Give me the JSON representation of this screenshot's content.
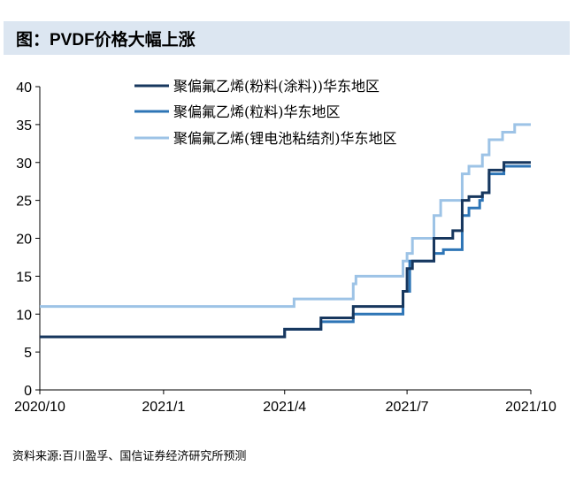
{
  "title": "图：PVDF价格大幅上涨",
  "source": "资料来源:百川盈孚、国信证券经济研究所预测",
  "chart_data": {
    "type": "line",
    "step": true,
    "title": "",
    "xlabel": "",
    "ylabel": "",
    "ylim": [
      0,
      40
    ],
    "yticks": [
      0,
      5,
      10,
      15,
      20,
      25,
      30,
      35,
      40
    ],
    "xlim": [
      "2020-10-01",
      "2021-10-01"
    ],
    "xticks": [
      {
        "date": "2020-10-01",
        "label": "2020/10"
      },
      {
        "date": "2021-01-01",
        "label": "2021/1"
      },
      {
        "date": "2021-04-01",
        "label": "2021/4"
      },
      {
        "date": "2021-07-01",
        "label": "2021/7"
      },
      {
        "date": "2021-10-01",
        "label": "2021/10"
      }
    ],
    "grid": false,
    "legend": "top",
    "series": [
      {
        "name": "聚偏氟乙烯(粉料(涂料))华东地区",
        "color": "#17375e",
        "points": [
          [
            "2020-10-01",
            7
          ],
          [
            "2021-04-01",
            8
          ],
          [
            "2021-04-28",
            9.5
          ],
          [
            "2021-05-22",
            11
          ],
          [
            "2021-06-28",
            13
          ],
          [
            "2021-07-01",
            16
          ],
          [
            "2021-07-05",
            17
          ],
          [
            "2021-07-21",
            20
          ],
          [
            "2021-08-04",
            21
          ],
          [
            "2021-08-11",
            25
          ],
          [
            "2021-08-16",
            25.5
          ],
          [
            "2021-08-26",
            26
          ],
          [
            "2021-08-31",
            29
          ],
          [
            "2021-09-11",
            30
          ],
          [
            "2021-10-01",
            30
          ]
        ]
      },
      {
        "name": "聚偏氟乙烯(粒料)华东地区",
        "color": "#2e75b6",
        "points": [
          [
            "2020-10-01",
            7
          ],
          [
            "2021-04-01",
            8
          ],
          [
            "2021-04-28",
            9
          ],
          [
            "2021-05-22",
            10
          ],
          [
            "2021-06-28",
            13
          ],
          [
            "2021-07-03",
            17
          ],
          [
            "2021-07-21",
            18
          ],
          [
            "2021-07-28",
            18.5
          ],
          [
            "2021-08-11",
            23
          ],
          [
            "2021-08-16",
            24
          ],
          [
            "2021-08-24",
            25
          ],
          [
            "2021-08-26",
            26
          ],
          [
            "2021-08-31",
            28.5
          ],
          [
            "2021-09-11",
            29.5
          ],
          [
            "2021-10-01",
            29.5
          ]
        ]
      },
      {
        "name": "聚偏氟乙烯(锂电池粘结剂)华东地区",
        "color": "#9dc3e6",
        "points": [
          [
            "2020-10-01",
            11
          ],
          [
            "2021-04-08",
            12
          ],
          [
            "2021-05-22",
            14
          ],
          [
            "2021-05-24",
            15
          ],
          [
            "2021-06-28",
            17
          ],
          [
            "2021-07-01",
            18
          ],
          [
            "2021-07-05",
            20
          ],
          [
            "2021-07-21",
            23
          ],
          [
            "2021-07-26",
            25
          ],
          [
            "2021-08-11",
            28.5
          ],
          [
            "2021-08-16",
            29.5
          ],
          [
            "2021-08-26",
            31
          ],
          [
            "2021-08-31",
            33
          ],
          [
            "2021-09-10",
            34
          ],
          [
            "2021-09-19",
            35
          ],
          [
            "2021-10-01",
            35
          ]
        ]
      }
    ]
  }
}
